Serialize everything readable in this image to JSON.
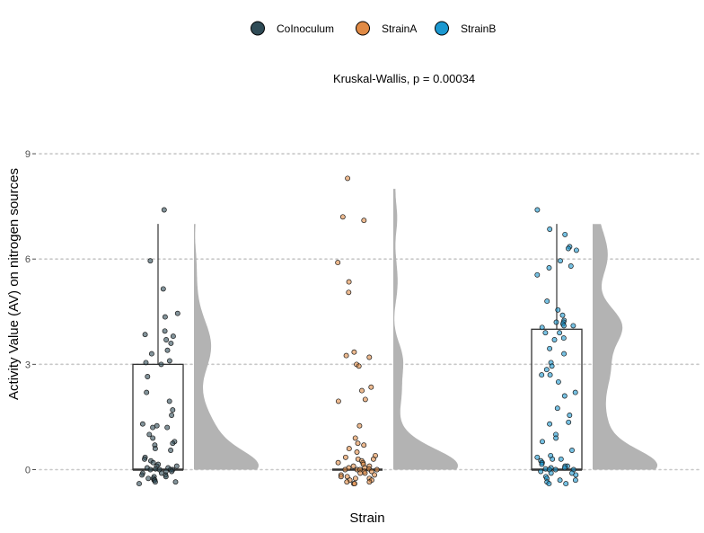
{
  "chart_data": {
    "type": "raincloud",
    "title": "Kruskal-Wallis, p = 0.00034",
    "xlabel": "Strain",
    "ylabel": "Activity Value (AV) on nitrogen sources",
    "ylim": [
      -0.6,
      9.5
    ],
    "yticks": [
      0,
      3,
      6,
      9
    ],
    "grid": "horizontal dotted",
    "legend": {
      "position": "top",
      "entries": [
        "CoInoculum",
        "StrainA",
        "StrainB"
      ]
    },
    "colors": {
      "CoInoculum": "#2f4b56",
      "StrainA": "#e08a45",
      "StrainB": "#1b98d0",
      "density": "#b3b3b3"
    },
    "groups": [
      {
        "name": "CoInoculum",
        "box": {
          "q1": 0,
          "median": 0,
          "q3": 3,
          "whisker_low": 0,
          "whisker_high": 7
        },
        "density_max": 7,
        "points": [
          7.4,
          5.95,
          5.15,
          4.45,
          4.35,
          3.95,
          3.85,
          3.8,
          3.7,
          3.6,
          3.4,
          3.3,
          3.1,
          3.05,
          3.0,
          2.65,
          2.2,
          1.95,
          1.7,
          1.55,
          1.3,
          1.25,
          1.2,
          1.2,
          1.0,
          0.9,
          0.8,
          0.75,
          0.7,
          0.6,
          0.55,
          0.35,
          0.3,
          0.25,
          0.2,
          0.15,
          0.1,
          0.1,
          0.05,
          0.05,
          0.02,
          0.0,
          0.0,
          0.0,
          0.0,
          -0.05,
          -0.05,
          -0.1,
          -0.1,
          -0.15,
          -0.15,
          -0.2,
          -0.2,
          -0.25,
          -0.25,
          -0.3,
          -0.3,
          -0.35,
          -0.35,
          -0.4
        ]
      },
      {
        "name": "StrainA",
        "box": {
          "q1": 0,
          "median": 0,
          "q3": 0,
          "whisker_low": 0,
          "whisker_high": 0
        },
        "density_max": 8,
        "points": [
          8.3,
          7.2,
          7.1,
          5.9,
          5.35,
          5.05,
          3.35,
          3.25,
          3.2,
          3.0,
          2.95,
          2.35,
          2.25,
          2.0,
          1.95,
          1.25,
          0.9,
          0.75,
          0.7,
          0.6,
          0.5,
          0.4,
          0.35,
          0.3,
          0.3,
          0.25,
          0.2,
          0.2,
          0.15,
          0.1,
          0.1,
          0.05,
          0.05,
          0.02,
          0.0,
          0.0,
          0.0,
          0.0,
          -0.05,
          -0.05,
          -0.1,
          -0.1,
          -0.15,
          -0.15,
          -0.2,
          -0.2,
          -0.25,
          -0.25,
          -0.3,
          -0.3,
          -0.35,
          -0.35,
          -0.4,
          -0.4
        ]
      },
      {
        "name": "StrainB",
        "box": {
          "q1": 0,
          "median": 0,
          "q3": 4,
          "whisker_low": 0,
          "whisker_high": 7
        },
        "density_max": 7,
        "points": [
          7.4,
          6.85,
          6.7,
          6.35,
          6.3,
          6.25,
          5.95,
          5.8,
          5.75,
          5.55,
          4.8,
          4.55,
          4.4,
          4.25,
          4.2,
          4.2,
          4.15,
          4.1,
          4.1,
          4.05,
          3.9,
          3.9,
          3.75,
          3.7,
          3.45,
          3.3,
          3.05,
          2.95,
          2.85,
          2.7,
          2.7,
          2.5,
          2.2,
          2.1,
          1.75,
          1.55,
          1.35,
          1.3,
          1.0,
          0.9,
          0.8,
          0.55,
          0.4,
          0.35,
          0.3,
          0.3,
          0.25,
          0.2,
          0.2,
          0.15,
          0.1,
          0.1,
          0.05,
          0.05,
          0.02,
          0.0,
          0.0,
          0.0,
          -0.05,
          -0.1,
          -0.1,
          -0.15,
          -0.2,
          -0.25,
          -0.3,
          -0.3,
          -0.35,
          -0.4,
          -0.4
        ]
      }
    ]
  }
}
